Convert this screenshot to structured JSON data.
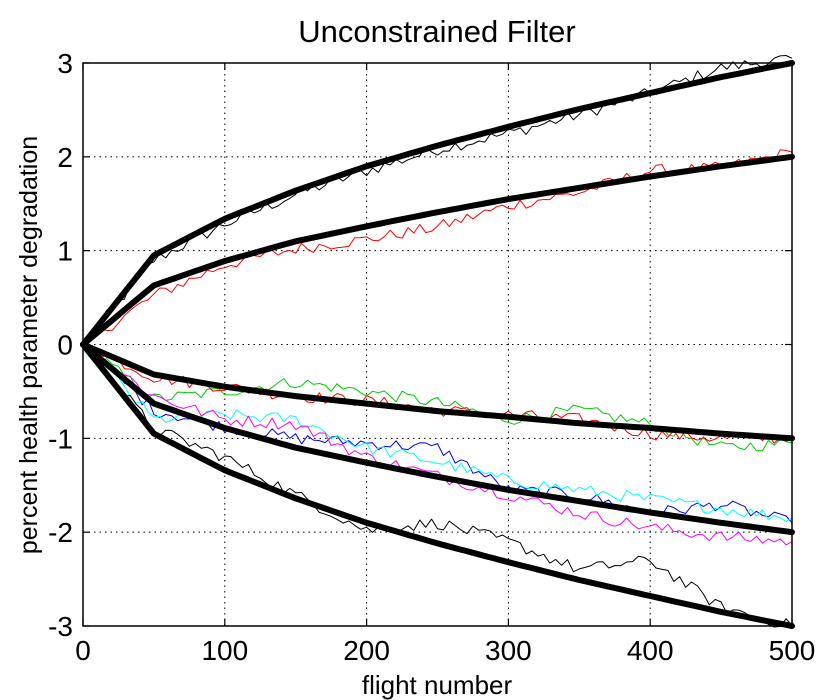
{
  "chart_data": {
    "type": "line",
    "title": "Unconstrained Filter",
    "xlabel": "flight number",
    "ylabel": "percent health parameter degradation",
    "xlim": [
      0,
      500
    ],
    "ylim": [
      -3,
      3
    ],
    "xticks": [
      0,
      100,
      200,
      300,
      400,
      500
    ],
    "yticks": [
      -3,
      -2,
      -1,
      0,
      1,
      2,
      3
    ],
    "grid": true,
    "legend": "none",
    "true_curves": [
      {
        "final_value": 3,
        "x": [
          0,
          50,
          100,
          150,
          200,
          250,
          300,
          350,
          400,
          450,
          500
        ],
        "values": [
          0,
          0.95,
          1.34,
          1.64,
          1.9,
          2.12,
          2.32,
          2.51,
          2.68,
          2.85,
          3.0
        ]
      },
      {
        "final_value": 2,
        "x": [
          0,
          50,
          100,
          150,
          200,
          250,
          300,
          350,
          400,
          450,
          500
        ],
        "values": [
          0,
          0.63,
          0.89,
          1.1,
          1.26,
          1.41,
          1.55,
          1.67,
          1.79,
          1.9,
          2.0
        ]
      },
      {
        "final_value": -1,
        "x": [
          0,
          50,
          100,
          150,
          200,
          250,
          300,
          350,
          400,
          450,
          500
        ],
        "values": [
          0,
          -0.32,
          -0.45,
          -0.55,
          -0.63,
          -0.71,
          -0.77,
          -0.84,
          -0.89,
          -0.95,
          -1.0
        ]
      },
      {
        "final_value": -2,
        "x": [
          0,
          50,
          100,
          150,
          200,
          250,
          300,
          350,
          400,
          450,
          500
        ],
        "values": [
          0,
          -0.63,
          -0.89,
          -1.1,
          -1.26,
          -1.41,
          -1.55,
          -1.67,
          -1.79,
          -1.9,
          -2.0
        ]
      },
      {
        "final_value": -3,
        "x": [
          0,
          50,
          100,
          150,
          200,
          250,
          300,
          350,
          400,
          450,
          500
        ],
        "values": [
          0,
          -0.95,
          -1.34,
          -1.64,
          -1.9,
          -2.12,
          -2.32,
          -2.51,
          -2.68,
          -2.85,
          -3.0
        ]
      }
    ],
    "estimate_series": [
      {
        "color": "#000000",
        "x": [
          0,
          50,
          100,
          150,
          200,
          250,
          300,
          350,
          400,
          450,
          500
        ],
        "values": [
          0,
          0.9,
          1.28,
          1.6,
          1.85,
          2.08,
          2.25,
          2.45,
          2.68,
          2.95,
          3.05
        ]
      },
      {
        "color": "#ff0000",
        "x": [
          0,
          50,
          100,
          150,
          200,
          250,
          300,
          350,
          400,
          450,
          500
        ],
        "values": [
          0,
          0.52,
          0.85,
          1.02,
          1.12,
          1.25,
          1.48,
          1.62,
          1.85,
          1.88,
          2.05
        ]
      },
      {
        "color": "#00cc00",
        "x": [
          0,
          50,
          100,
          150,
          200,
          250,
          300,
          350,
          400,
          450,
          500
        ],
        "values": [
          0,
          -0.58,
          -0.5,
          -0.4,
          -0.5,
          -0.62,
          -0.8,
          -0.7,
          -0.85,
          -1.1,
          -1.05
        ]
      },
      {
        "color": "#ff0000",
        "x": [
          0,
          50,
          100,
          150,
          200,
          250,
          300,
          350,
          400,
          450,
          500
        ],
        "values": [
          0,
          -0.35,
          -0.45,
          -0.55,
          -0.6,
          -0.7,
          -0.75,
          -0.8,
          -0.95,
          -1.0,
          -1.0
        ]
      },
      {
        "color": "#0000ff",
        "x": [
          0,
          50,
          100,
          150,
          200,
          250,
          300,
          350,
          400,
          450,
          500
        ],
        "values": [
          0,
          -0.7,
          -0.88,
          -1.0,
          -1.05,
          -1.1,
          -1.55,
          -1.6,
          -1.8,
          -1.7,
          -1.9
        ]
      },
      {
        "color": "#00ffff",
        "x": [
          0,
          50,
          100,
          150,
          200,
          250,
          300,
          350,
          400,
          450,
          500
        ],
        "values": [
          0,
          -0.8,
          -0.75,
          -0.8,
          -1.1,
          -1.25,
          -1.45,
          -1.55,
          -1.65,
          -1.75,
          -1.85
        ]
      },
      {
        "color": "#ff00ff",
        "x": [
          0,
          50,
          100,
          150,
          200,
          250,
          300,
          350,
          400,
          450,
          500
        ],
        "values": [
          0,
          -0.55,
          -0.8,
          -0.85,
          -1.2,
          -1.4,
          -1.6,
          -1.8,
          -1.95,
          -2.05,
          -2.1
        ]
      },
      {
        "color": "#000000",
        "x": [
          0,
          50,
          100,
          150,
          200,
          250,
          300,
          350,
          400,
          450,
          500
        ],
        "values": [
          0,
          -0.9,
          -1.2,
          -1.6,
          -1.98,
          -1.9,
          -2.1,
          -2.4,
          -2.3,
          -2.8,
          -3.0
        ]
      }
    ]
  }
}
